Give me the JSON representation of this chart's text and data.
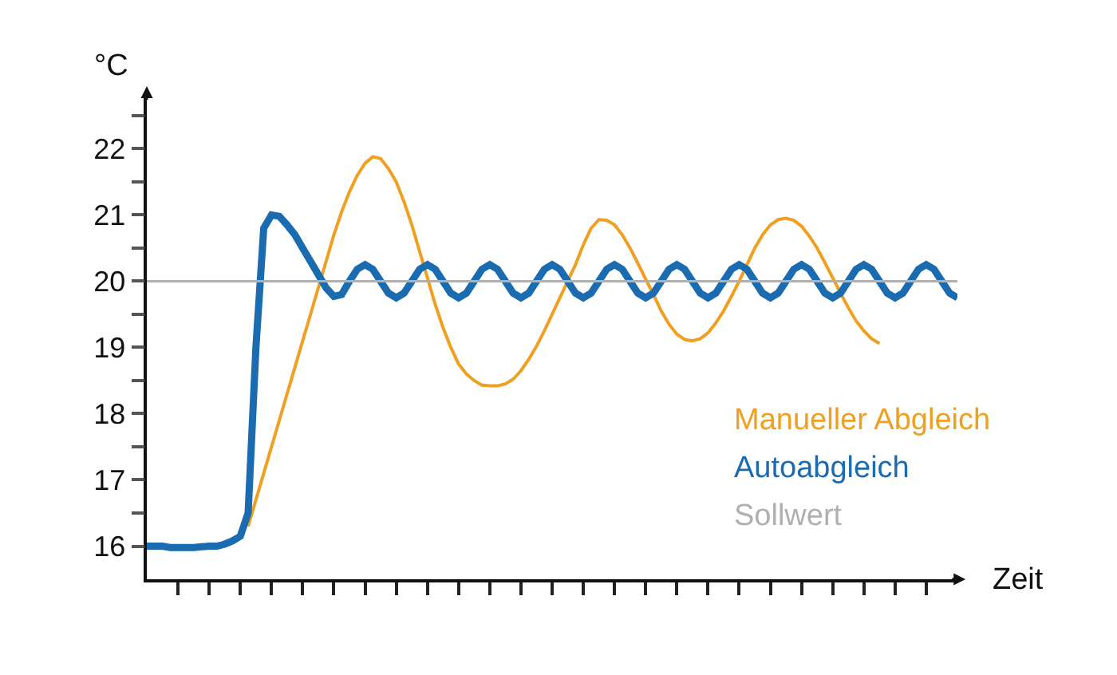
{
  "chart_data": {
    "type": "line",
    "ylabel": "°C",
    "xlabel": "Zeit",
    "ylim": [
      15.5,
      22.8
    ],
    "categories": [
      null,
      null,
      null,
      null,
      null,
      null,
      null,
      null,
      null,
      null,
      null,
      null,
      null,
      null,
      null,
      null,
      null,
      null,
      null,
      null,
      null,
      null,
      null,
      null,
      null,
      null,
      null,
      null,
      null,
      null,
      null,
      null,
      null,
      null,
      null,
      null,
      null,
      null,
      null,
      null,
      null,
      null,
      null,
      null,
      null,
      null,
      null,
      null,
      null,
      null,
      null,
      null,
      null,
      null,
      null,
      null,
      null,
      null,
      null,
      null,
      null,
      null,
      null,
      null,
      null,
      null,
      null,
      null,
      null,
      null,
      null,
      null,
      null,
      null,
      null,
      null,
      null,
      null,
      null,
      null,
      null,
      null,
      null,
      null,
      null,
      null,
      null,
      null,
      null,
      null,
      null,
      null,
      null,
      null,
      null,
      null,
      null,
      null,
      null,
      null,
      null,
      null,
      null,
      null,
      null
    ],
    "yticks": [
      16,
      {
        "value": 16.5,
        "label": null
      },
      17,
      {
        "value": 17.5,
        "label": null
      },
      18,
      {
        "value": 18.5,
        "label": null
      },
      19,
      {
        "value": 19.5,
        "label": null
      },
      20,
      {
        "value": 20.5,
        "label": null
      },
      21,
      {
        "value": 21.5,
        "label": null
      },
      22,
      {
        "value": 22.5,
        "label": null
      }
    ],
    "tick_labels": "y",
    "grid": false,
    "marker": "none",
    "line_style": "solid",
    "series": [
      {
        "name": "Manueller Abgleich",
        "color": "#f0a020",
        "values": [
          null,
          null,
          null,
          null,
          null,
          null,
          null,
          null,
          null,
          null,
          null,
          null,
          null,
          16.3,
          16.7,
          17.1,
          17.5,
          17.9,
          18.3,
          18.7,
          19.1,
          19.5,
          19.9,
          20.3,
          20.7,
          21.05,
          21.35,
          21.6,
          21.78,
          21.88,
          21.85,
          21.7,
          21.5,
          21.2,
          20.85,
          20.45,
          20.05,
          19.65,
          19.3,
          19.0,
          18.75,
          18.6,
          18.5,
          18.43,
          18.42,
          18.42,
          18.45,
          18.52,
          18.65,
          18.82,
          19.02,
          19.25,
          19.5,
          19.75,
          20.0,
          20.25,
          20.55,
          20.8,
          20.93,
          20.92,
          20.85,
          20.7,
          20.5,
          20.27,
          20.03,
          19.8,
          19.55,
          19.35,
          19.2,
          19.12,
          19.1,
          19.13,
          19.22,
          19.37,
          19.55,
          19.77,
          20.0,
          20.25,
          20.5,
          20.7,
          20.85,
          20.93,
          20.95,
          20.92,
          20.83,
          20.68,
          20.5,
          20.28,
          20.05,
          19.82,
          19.6,
          19.4,
          19.25,
          19.13,
          19.06,
          null,
          null,
          null,
          null,
          null,
          null,
          null,
          null,
          null,
          null
        ]
      },
      {
        "name": "Autoabgleich",
        "color": "#1a6bb0",
        "values": [
          16.0,
          16.0,
          16.0,
          15.98,
          15.98,
          15.98,
          15.98,
          15.99,
          16.0,
          16.0,
          16.03,
          16.08,
          16.15,
          16.5,
          19.0,
          20.8,
          21.0,
          20.98,
          20.85,
          20.7,
          20.5,
          20.3,
          20.1,
          19.9,
          19.77,
          19.8,
          20.0,
          20.18,
          20.25,
          20.18,
          20.0,
          19.82,
          19.75,
          19.82,
          20.0,
          20.18,
          20.25,
          20.18,
          20.0,
          19.82,
          19.75,
          19.82,
          20.0,
          20.18,
          20.25,
          20.18,
          20.0,
          19.82,
          19.75,
          19.82,
          20.0,
          20.18,
          20.25,
          20.18,
          20.0,
          19.82,
          19.75,
          19.82,
          20.0,
          20.18,
          20.25,
          20.18,
          20.0,
          19.82,
          19.75,
          19.82,
          20.0,
          20.18,
          20.25,
          20.18,
          20.0,
          19.82,
          19.75,
          19.82,
          20.0,
          20.18,
          20.25,
          20.18,
          20.0,
          19.82,
          19.75,
          19.82,
          20.0,
          20.18,
          20.25,
          20.18,
          20.0,
          19.82,
          19.75,
          19.82,
          20.0,
          20.18,
          20.25,
          20.18,
          20.0,
          19.82,
          19.75,
          19.82,
          20.0,
          20.18,
          20.25,
          20.18,
          20.0,
          19.82,
          19.75
        ]
      }
    ],
    "ref_lines": [
      {
        "axis": "y",
        "value": 20,
        "label": "Sollwert",
        "color": "#b0b0b0"
      }
    ]
  }
}
